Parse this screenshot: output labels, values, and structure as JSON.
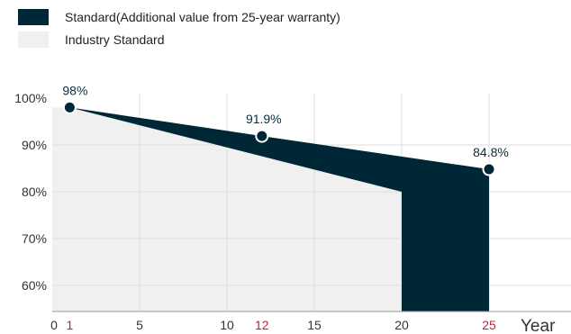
{
  "legend": {
    "items": [
      {
        "label": "Standard(Additional value from 25-year warranty)",
        "color": "#002736"
      },
      {
        "label": "Industry Standard",
        "color": "#f0f0f0"
      }
    ],
    "position": "top-left"
  },
  "chart_data": {
    "type": "area",
    "title": "",
    "xlabel": "Year",
    "ylabel": "",
    "xlim": [
      0,
      30
    ],
    "ylim": [
      55,
      100
    ],
    "x_ticks": [
      {
        "value": 0,
        "label": "0",
        "highlight": false
      },
      {
        "value": 1,
        "label": "1",
        "highlight": true
      },
      {
        "value": 5,
        "label": "5",
        "highlight": false
      },
      {
        "value": 10,
        "label": "10",
        "highlight": false
      },
      {
        "value": 12,
        "label": "12",
        "highlight": true
      },
      {
        "value": 15,
        "label": "15",
        "highlight": false
      },
      {
        "value": 20,
        "label": "20",
        "highlight": false
      },
      {
        "value": 25,
        "label": "25",
        "highlight": true
      }
    ],
    "y_ticks": [
      {
        "value": 100,
        "label": "100%"
      },
      {
        "value": 90,
        "label": "90%"
      },
      {
        "value": 80,
        "label": "80%"
      },
      {
        "value": 70,
        "label": "70%"
      },
      {
        "value": 60,
        "label": "60%"
      }
    ],
    "series": [
      {
        "name": "Standard(Additional value from 25-year warranty)",
        "color": "#002736",
        "points": [
          {
            "x": 1,
            "y": 98,
            "label": "98%"
          },
          {
            "x": 12,
            "y": 91.9,
            "label": "91.9%"
          },
          {
            "x": 25,
            "y": 84.8,
            "label": "84.8%"
          }
        ]
      },
      {
        "name": "Industry Standard",
        "color": "#f0f0f0",
        "points": [
          {
            "x": 0,
            "y": 98
          },
          {
            "x": 1,
            "y": 98
          },
          {
            "x": 20,
            "y": 80
          }
        ]
      }
    ],
    "grid": true,
    "colors": {
      "highlight_tick": "#b8273a",
      "marker_stroke": "#ffffff",
      "grid": "#dddddd"
    }
  }
}
